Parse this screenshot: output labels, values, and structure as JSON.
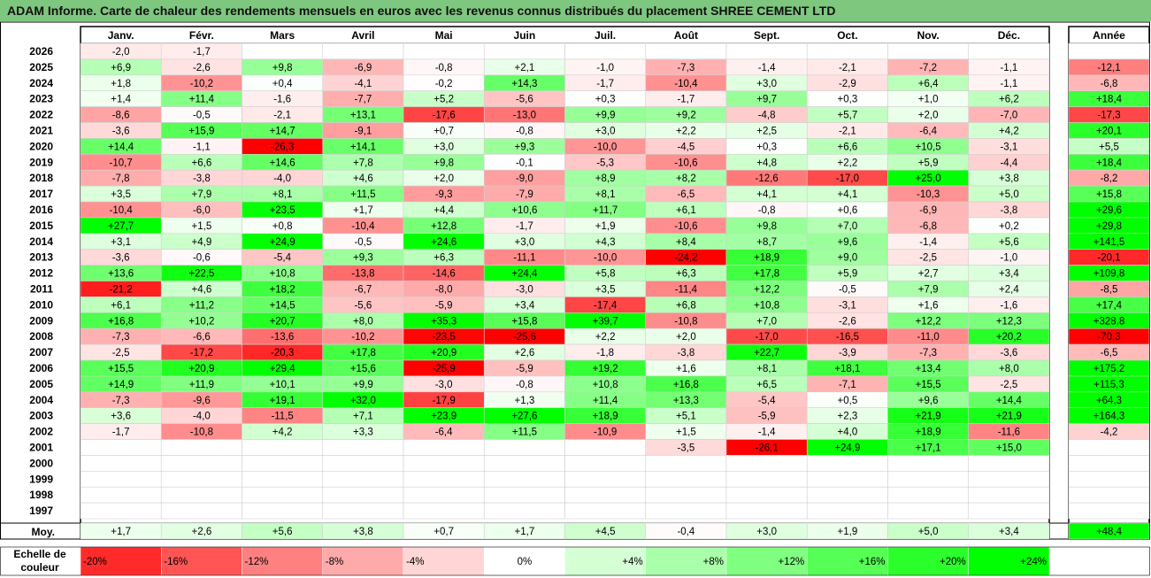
{
  "title": "ADAM Informe. Carte de chaleur des rendements mensuels en euros avec les revenus connus distribués du placement SHREE CEMENT LTD",
  "chart_data": {
    "type": "heatmap",
    "columns": [
      "Janv.",
      "Févr.",
      "Mars",
      "Avril",
      "Mai",
      "Juin",
      "Juil.",
      "Août",
      "Sept.",
      "Oct.",
      "Nov.",
      "Déc."
    ],
    "year_column": "Année",
    "rows": [
      {
        "year": "2026",
        "values": [
          "-2,0",
          "-1,7",
          "",
          "",
          "",
          "",
          "",
          "",
          "",
          "",
          "",
          ""
        ],
        "annual": ""
      },
      {
        "year": "2025",
        "values": [
          "+6,9",
          "-2,6",
          "+9,8",
          "-6,9",
          "-0,8",
          "+2,1",
          "-1,0",
          "-7,3",
          "-1,4",
          "-2,1",
          "-7,2",
          "-1,1"
        ],
        "annual": "-12,1"
      },
      {
        "year": "2024",
        "values": [
          "+1,8",
          "-10,2",
          "+0,4",
          "-4,1",
          "-0,2",
          "+14,3",
          "-1,7",
          "-10,4",
          "+3,0",
          "-2,9",
          "+6,4",
          "-1,1"
        ],
        "annual": "-6,8"
      },
      {
        "year": "2023",
        "values": [
          "+1,4",
          "+11,4",
          "-1,6",
          "-7,7",
          "+5,2",
          "-5,6",
          "+0,3",
          "-1,7",
          "+9,7",
          "+0,3",
          "+1,0",
          "+6,2"
        ],
        "annual": "+18,4"
      },
      {
        "year": "2022",
        "values": [
          "-8,6",
          "-0,5",
          "-2,1",
          "+13,1",
          "-17,6",
          "-13,0",
          "+9,9",
          "+9,2",
          "-4,8",
          "+5,7",
          "+2,0",
          "-7,0"
        ],
        "annual": "-17,3"
      },
      {
        "year": "2021",
        "values": [
          "-3,6",
          "+15,9",
          "+14,7",
          "-9,1",
          "+0,7",
          "-0,8",
          "+3,0",
          "+2,2",
          "+2,5",
          "-2,1",
          "-6,4",
          "+4,2"
        ],
        "annual": "+20,1"
      },
      {
        "year": "2020",
        "values": [
          "+14,4",
          "-1,1",
          "-26,3",
          "+14,1",
          "+3,0",
          "+9,3",
          "-10,0",
          "-4,5",
          "+0,3",
          "+6,6",
          "+10,5",
          "-3,1"
        ],
        "annual": "+5,5"
      },
      {
        "year": "2019",
        "values": [
          "-10,7",
          "+6,6",
          "+14,6",
          "+7,8",
          "+9,8",
          "-0,1",
          "-5,3",
          "-10,6",
          "+4,8",
          "+2,2",
          "+5,9",
          "-4,4"
        ],
        "annual": "+18,4"
      },
      {
        "year": "2018",
        "values": [
          "-7,8",
          "-3,8",
          "-4,0",
          "+4,6",
          "+2,0",
          "-9,0",
          "+8,9",
          "+8,2",
          "-12,6",
          "-17,0",
          "+25,0",
          "+3,8"
        ],
        "annual": "-8,2"
      },
      {
        "year": "2017",
        "values": [
          "+3,5",
          "+7,9",
          "+8,1",
          "+11,5",
          "-9,3",
          "-7,9",
          "+8,1",
          "-6,5",
          "+4,1",
          "+4,1",
          "-10,3",
          "+5,0"
        ],
        "annual": "+15,8"
      },
      {
        "year": "2016",
        "values": [
          "-10,4",
          "-6,0",
          "+23,5",
          "+1,7",
          "+4,4",
          "+10,6",
          "+11,7",
          "+6,1",
          "-0,8",
          "+0,6",
          "-6,9",
          "-3,8"
        ],
        "annual": "+29,6"
      },
      {
        "year": "2015",
        "values": [
          "+27,7",
          "+1,5",
          "+0,8",
          "-10,4",
          "+12,8",
          "-1,7",
          "+1,9",
          "-10,6",
          "+9,8",
          "+7,0",
          "-6,8",
          "+0,2"
        ],
        "annual": "+29,8"
      },
      {
        "year": "2014",
        "values": [
          "+3,1",
          "+4,9",
          "+24,9",
          "-0,5",
          "+24,6",
          "+3,0",
          "+4,3",
          "+8,4",
          "+8,7",
          "+9,6",
          "-1,4",
          "+5,6"
        ],
        "annual": "+141,5"
      },
      {
        "year": "2013",
        "values": [
          "-3,6",
          "-0,6",
          "-5,4",
          "+9,3",
          "+6,3",
          "-11,1",
          "-10,0",
          "-24,2",
          "+18,9",
          "+9,0",
          "-2,5",
          "-1,0"
        ],
        "annual": "-20,1"
      },
      {
        "year": "2012",
        "values": [
          "+13,6",
          "+22,5",
          "+10,8",
          "-13,8",
          "-14,6",
          "+24,4",
          "+5,8",
          "+6,3",
          "+17,8",
          "+5,9",
          "+2,7",
          "+3,4"
        ],
        "annual": "+109,8"
      },
      {
        "year": "2011",
        "values": [
          "-21,2",
          "+4,6",
          "+18,2",
          "-6,7",
          "-8,0",
          "-3,0",
          "+3,5",
          "-11,4",
          "+12,2",
          "-0,5",
          "+7,9",
          "+2,4"
        ],
        "annual": "-8,5"
      },
      {
        "year": "2010",
        "values": [
          "+6,1",
          "+11,2",
          "+14,5",
          "-5,6",
          "-5,9",
          "+3,4",
          "-17,4",
          "+6,8",
          "+10,8",
          "-3,1",
          "+1,6",
          "-1,6"
        ],
        "annual": "+17,4"
      },
      {
        "year": "2009",
        "values": [
          "+16,8",
          "+10,2",
          "+20,7",
          "+8,0",
          "+35,3",
          "+15,8",
          "+39,7",
          "-10,8",
          "+7,0",
          "-2,6",
          "+12,2",
          "+12,3"
        ],
        "annual": "+328,8"
      },
      {
        "year": "2008",
        "values": [
          "-7,3",
          "-6,6",
          "-13,6",
          "-10,2",
          "-23,5",
          "-25,6",
          "+2,2",
          "+2,0",
          "-17,0",
          "-16,5",
          "-11,0",
          "+20,2"
        ],
        "annual": "-70,3"
      },
      {
        "year": "2007",
        "values": [
          "-2,5",
          "-17,2",
          "-20,3",
          "+17,8",
          "+20,9",
          "+2,6",
          "-1,8",
          "-3,8",
          "+22,7",
          "-3,9",
          "-7,3",
          "-3,6"
        ],
        "annual": "-6,5"
      },
      {
        "year": "2006",
        "values": [
          "+15,5",
          "+20,9",
          "+29,4",
          "+15,6",
          "-25,9",
          "-5,9",
          "+19,2",
          "+1,6",
          "+8,1",
          "+18,1",
          "+13,4",
          "+8,0"
        ],
        "annual": "+175,2"
      },
      {
        "year": "2005",
        "values": [
          "+14,9",
          "+11,9",
          "+10,1",
          "+9,9",
          "-3,0",
          "-0,8",
          "+10,8",
          "+16,8",
          "+6,5",
          "-7,1",
          "+15,5",
          "-2,5"
        ],
        "annual": "+115,3"
      },
      {
        "year": "2004",
        "values": [
          "-7,3",
          "-9,6",
          "+19,1",
          "+32,0",
          "-17,9",
          "+1,3",
          "+11,4",
          "+13,3",
          "-5,4",
          "+0,5",
          "+9,6",
          "+14,4"
        ],
        "annual": "+64,3"
      },
      {
        "year": "2003",
        "values": [
          "+3,6",
          "-4,0",
          "-11,5",
          "+7,1",
          "+23,9",
          "+27,6",
          "+18,9",
          "+5,1",
          "-5,9",
          "+2,3",
          "+21,9",
          "+21,9"
        ],
        "annual": "+164,3"
      },
      {
        "year": "2002",
        "values": [
          "-1,7",
          "-10,8",
          "+4,2",
          "+3,3",
          "-6,4",
          "+11,5",
          "-10,9",
          "+1,5",
          "-1,4",
          "+4,0",
          "+18,9",
          "-11,6"
        ],
        "annual": "-4,2"
      },
      {
        "year": "2001",
        "values": [
          "",
          "",
          "",
          "",
          "",
          "",
          "",
          "-3,5",
          "-26,1",
          "+24,9",
          "+17,1",
          "+15,0"
        ],
        "annual": ""
      },
      {
        "year": "2000",
        "values": [
          "",
          "",
          "",
          "",
          "",
          "",
          "",
          "",
          "",
          "",
          "",
          ""
        ],
        "annual": ""
      },
      {
        "year": "1999",
        "values": [
          "",
          "",
          "",
          "",
          "",
          "",
          "",
          "",
          "",
          "",
          "",
          ""
        ],
        "annual": ""
      },
      {
        "year": "1998",
        "values": [
          "",
          "",
          "",
          "",
          "",
          "",
          "",
          "",
          "",
          "",
          "",
          ""
        ],
        "annual": ""
      },
      {
        "year": "1997",
        "values": [
          "",
          "",
          "",
          "",
          "",
          "",
          "",
          "",
          "",
          "",
          "",
          ""
        ],
        "annual": ""
      }
    ],
    "average": {
      "label": "Moy.",
      "values": [
        "+1,7",
        "+2,6",
        "+5,6",
        "+3,8",
        "+0,7",
        "+1,7",
        "+4,5",
        "-0,4",
        "+3,0",
        "+1,9",
        "+5,0",
        "+3,4"
      ],
      "annual": "+48,4"
    },
    "legend": {
      "label": "Echelle de couleur",
      "items": [
        {
          "text": "-20%",
          "value": -20
        },
        {
          "text": "-16%",
          "value": -16
        },
        {
          "text": "-12%",
          "value": -12
        },
        {
          "text": "-8%",
          "value": -8
        },
        {
          "text": "-4%",
          "value": -4
        },
        {
          "text": "0%",
          "value": 0
        },
        {
          "text": "+4%",
          "value": 4
        },
        {
          "text": "+8%",
          "value": 8
        },
        {
          "text": "+12%",
          "value": 12
        },
        {
          "text": "+16%",
          "value": 16
        },
        {
          "text": "+20%",
          "value": 20
        },
        {
          "text": "+24%",
          "value": 24
        }
      ]
    },
    "colors": {
      "negative": "#ff0000",
      "neutral": "#ffffff",
      "positive": "#00ff00",
      "header": "#7ec77e"
    }
  }
}
